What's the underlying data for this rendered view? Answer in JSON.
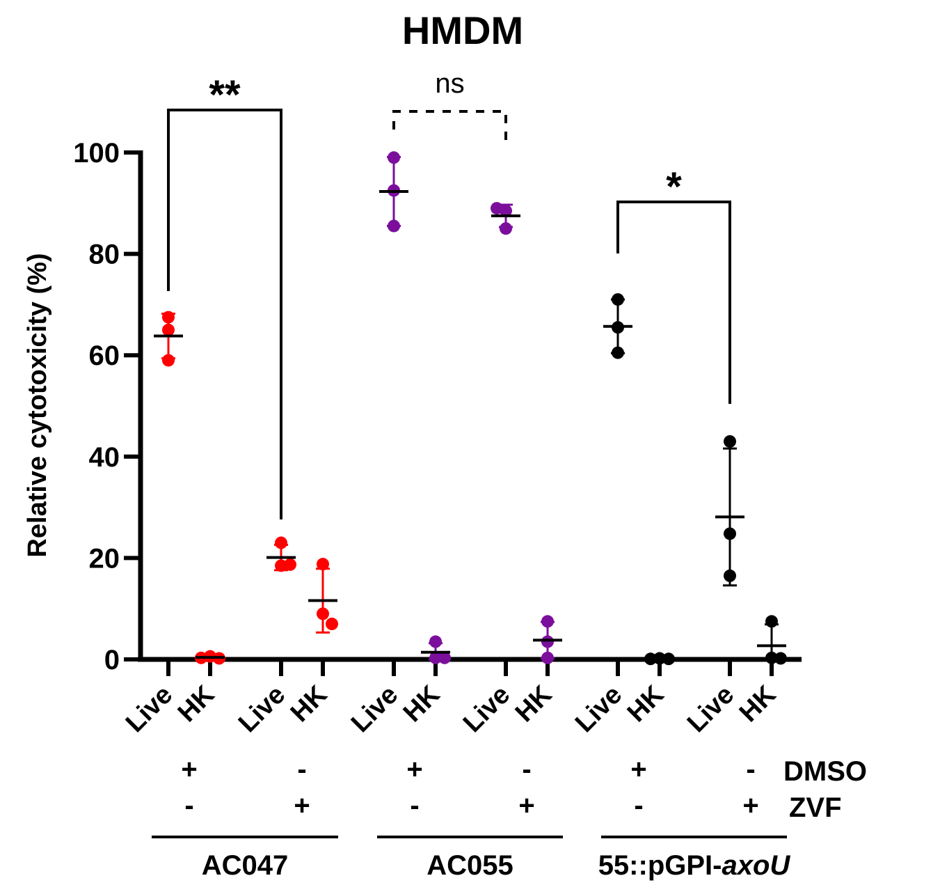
{
  "chart_data": {
    "type": "scatter",
    "title": "HMDM",
    "ylabel": "Relative cytotoxicity (%)",
    "ylim": [
      0,
      100
    ],
    "yticks": [
      "0",
      "20",
      "40",
      "60",
      "80",
      "100"
    ],
    "xcategories": [
      "Live",
      "HK",
      "Live",
      "HK",
      "Live",
      "HK",
      "Live",
      "HK",
      "Live",
      "HK",
      "Live",
      "HK"
    ],
    "treatment_labels": [
      "DMSO",
      "ZVF"
    ],
    "treatment_signs": [
      {
        "dmso": "+",
        "zvf": "-"
      },
      {
        "dmso": "-",
        "zvf": "+"
      },
      {
        "dmso": "+",
        "zvf": "-"
      },
      {
        "dmso": "-",
        "zvf": "+"
      },
      {
        "dmso": "+",
        "zvf": "-"
      },
      {
        "dmso": "-",
        "zvf": "+"
      }
    ],
    "strains": [
      {
        "name": "AC047",
        "color": "#ff0000"
      },
      {
        "name": "AC055",
        "color": "#7b0f9c"
      },
      {
        "name_prefix": "55::pGPI-",
        "name_italic": "axoU",
        "color": "#000000"
      }
    ],
    "groups": [
      {
        "category": "Live",
        "strain": 0,
        "points": [
          67.5,
          65.0,
          59.0
        ],
        "mean": 63.8,
        "sd": 4.4
      },
      {
        "category": "HK",
        "strain": 0,
        "points": [
          0.3,
          0.6,
          0.2
        ],
        "mean": 0.4,
        "sd": 0.2
      },
      {
        "category": "Live",
        "strain": 0,
        "points": [
          23.0,
          18.5,
          18.7
        ],
        "mean": 20.1,
        "sd": 2.5
      },
      {
        "category": "HK",
        "strain": 0,
        "points": [
          18.8,
          9.0,
          7.0
        ],
        "mean": 11.6,
        "sd": 6.3
      },
      {
        "category": "Live",
        "strain": 1,
        "points": [
          99.0,
          92.5,
          85.5
        ],
        "mean": 92.3,
        "sd": 6.8
      },
      {
        "category": "HK",
        "strain": 1,
        "points": [
          3.5,
          0.3,
          0.3
        ],
        "mean": 1.4,
        "sd": 1.8
      },
      {
        "category": "Live",
        "strain": 1,
        "points": [
          89.0,
          88.5,
          85.0
        ],
        "mean": 87.5,
        "sd": 2.2
      },
      {
        "category": "HK",
        "strain": 1,
        "points": [
          7.5,
          3.5,
          0.3
        ],
        "mean": 3.8,
        "sd": 3.6
      },
      {
        "category": "Live",
        "strain": 2,
        "points": [
          71.0,
          65.5,
          60.5
        ],
        "mean": 65.7,
        "sd": 5.3
      },
      {
        "category": "HK",
        "strain": 2,
        "points": [
          0.1,
          0.2,
          0.1
        ],
        "mean": 0.1,
        "sd": 0.05
      },
      {
        "category": "Live",
        "strain": 2,
        "points": [
          43.0,
          24.8,
          16.5
        ],
        "mean": 28.1,
        "sd": 13.5
      },
      {
        "category": "HK",
        "strain": 2,
        "points": [
          7.5,
          0.3,
          0.2
        ],
        "mean": 2.7,
        "sd": 4.2
      }
    ],
    "comparisons": [
      {
        "from": 0,
        "to": 2,
        "label": "**",
        "style": "solid"
      },
      {
        "from": 4,
        "to": 6,
        "label": "ns",
        "style": "dashed"
      },
      {
        "from": 8,
        "to": 10,
        "label": "*",
        "style": "solid"
      }
    ]
  }
}
